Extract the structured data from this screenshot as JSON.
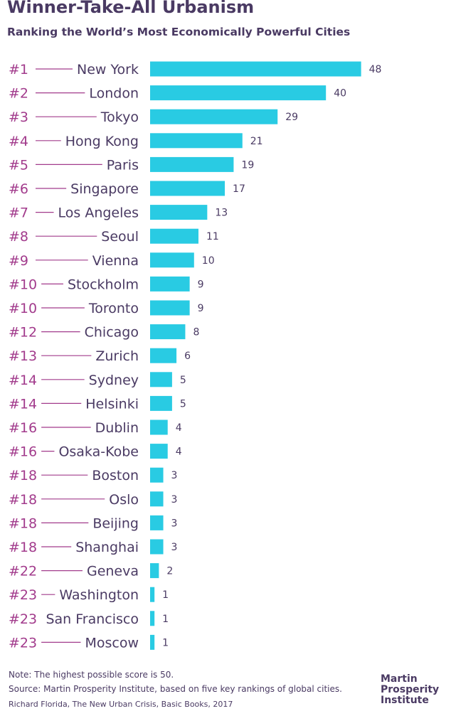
{
  "header": {
    "title": "Winner-Take-All Urbanism",
    "subtitle": "Ranking the World’s Most Economically Powerful Cities"
  },
  "colors": {
    "bar": "#29cbe3",
    "rank": "#a23b8c",
    "text": "#4a3a63"
  },
  "chart_data": {
    "type": "bar",
    "orientation": "horizontal",
    "title": "Winner-Take-All Urbanism",
    "subtitle": "Ranking the World’s Most Economically Powerful Cities",
    "grid": false,
    "rows": [
      {
        "rank": "#1",
        "city": "New York",
        "value": 48
      },
      {
        "rank": "#2",
        "city": "London",
        "value": 40
      },
      {
        "rank": "#3",
        "city": "Tokyo",
        "value": 29
      },
      {
        "rank": "#4",
        "city": "Hong Kong",
        "value": 21
      },
      {
        "rank": "#5",
        "city": "Paris",
        "value": 19
      },
      {
        "rank": "#6",
        "city": "Singapore",
        "value": 17
      },
      {
        "rank": "#7",
        "city": "Los Angeles",
        "value": 13
      },
      {
        "rank": "#8",
        "city": "Seoul",
        "value": 11
      },
      {
        "rank": "#9",
        "city": "Vienna",
        "value": 10
      },
      {
        "rank": "#10",
        "city": "Stockholm",
        "value": 9
      },
      {
        "rank": "#10",
        "city": "Toronto",
        "value": 9
      },
      {
        "rank": "#12",
        "city": "Chicago",
        "value": 8
      },
      {
        "rank": "#13",
        "city": "Zurich",
        "value": 6
      },
      {
        "rank": "#14",
        "city": "Sydney",
        "value": 5
      },
      {
        "rank": "#14",
        "city": "Helsinki",
        "value": 5
      },
      {
        "rank": "#16",
        "city": "Dublin",
        "value": 4
      },
      {
        "rank": "#16",
        "city": "Osaka-Kobe",
        "value": 4
      },
      {
        "rank": "#18",
        "city": "Boston",
        "value": 3
      },
      {
        "rank": "#18",
        "city": "Oslo",
        "value": 3
      },
      {
        "rank": "#18",
        "city": "Beijing",
        "value": 3
      },
      {
        "rank": "#18",
        "city": "Shanghai",
        "value": 3
      },
      {
        "rank": "#22",
        "city": "Geneva",
        "value": 2
      },
      {
        "rank": "#23",
        "city": "Washington",
        "value": 1
      },
      {
        "rank": "#23",
        "city": "San Francisco",
        "value": 1
      },
      {
        "rank": "#23",
        "city": "Moscow",
        "value": 1
      }
    ]
  },
  "footer": {
    "note": "Note: The highest possible score is 50.",
    "source": "Source: Martin Prosperity Institute, based on five key rankings of global cities.",
    "credit": "Richard Florida, The New Urban Crisis, Basic Books, 2017",
    "logo_lines": [
      "Martin",
      "Prosperity",
      "Institute"
    ]
  }
}
